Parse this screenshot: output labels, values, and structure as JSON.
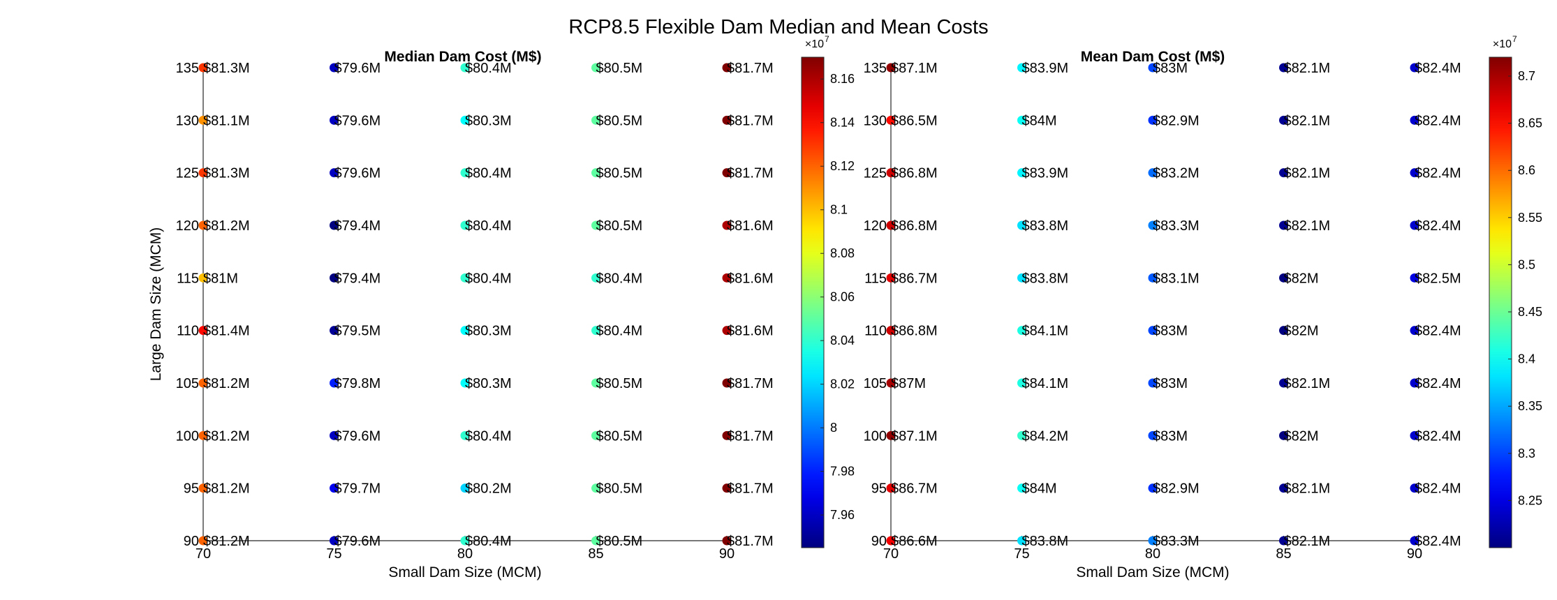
{
  "figure": {
    "title": "RCP8.5 Flexible Dam Median and Mean Costs"
  },
  "chart_data": [
    {
      "type": "scatter",
      "title": "Median Dam Cost (M$)",
      "xlabel": "Small Dam Size (MCM)",
      "ylabel": "Large Dam Size (MCM)",
      "x": [
        70,
        75,
        80,
        85,
        90
      ],
      "y": [
        90,
        95,
        100,
        105,
        110,
        115,
        120,
        125,
        130,
        135
      ],
      "xlim": [
        70,
        90
      ],
      "ylim": [
        90,
        135
      ],
      "x_ticks": [
        "70",
        "75",
        "80",
        "85",
        "90"
      ],
      "y_ticks": [
        "90",
        "95",
        "100",
        "105",
        "110",
        "115",
        "120",
        "125",
        "130",
        "135"
      ],
      "grid": false,
      "values": [
        [
          81.2,
          79.6,
          80.4,
          80.5,
          81.7
        ],
        [
          81.2,
          79.7,
          80.2,
          80.5,
          81.7
        ],
        [
          81.2,
          79.6,
          80.4,
          80.5,
          81.7
        ],
        [
          81.2,
          79.8,
          80.3,
          80.5,
          81.7
        ],
        [
          81.4,
          79.5,
          80.3,
          80.4,
          81.6
        ],
        [
          81.0,
          79.4,
          80.4,
          80.4,
          81.6
        ],
        [
          81.2,
          79.4,
          80.4,
          80.5,
          81.6
        ],
        [
          81.3,
          79.6,
          80.4,
          80.5,
          81.7
        ],
        [
          81.1,
          79.6,
          80.3,
          80.5,
          81.7
        ],
        [
          81.3,
          79.6,
          80.4,
          80.5,
          81.7
        ]
      ],
      "labels": [
        [
          "$81.2M",
          "$79.6M",
          "$80.4M",
          "$80.5M",
          "$81.7M"
        ],
        [
          "$81.2M",
          "$79.7M",
          "$80.2M",
          "$80.5M",
          "$81.7M"
        ],
        [
          "$81.2M",
          "$79.6M",
          "$80.4M",
          "$80.5M",
          "$81.7M"
        ],
        [
          "$81.2M",
          "$79.8M",
          "$80.3M",
          "$80.5M",
          "$81.7M"
        ],
        [
          "$81.4M",
          "$79.5M",
          "$80.3M",
          "$80.4M",
          "$81.6M"
        ],
        [
          "$81M",
          "$79.4M",
          "$80.4M",
          "$80.4M",
          "$81.6M"
        ],
        [
          "$81.2M",
          "$79.4M",
          "$80.4M",
          "$80.5M",
          "$81.6M"
        ],
        [
          "$81.3M",
          "$79.6M",
          "$80.4M",
          "$80.5M",
          "$81.7M"
        ],
        [
          "$81.1M",
          "$79.6M",
          "$80.3M",
          "$80.5M",
          "$81.7M"
        ],
        [
          "$81.3M",
          "$79.6M",
          "$80.4M",
          "$80.5M",
          "$81.7M"
        ]
      ],
      "colorbar": {
        "colormap": "jet",
        "min": 7.945,
        "max": 8.17,
        "ticks": [
          7.96,
          7.98,
          8,
          8.02,
          8.04,
          8.06,
          8.08,
          8.1,
          8.12,
          8.14,
          8.16
        ],
        "tick_labels": [
          "7.96",
          "7.98",
          "8",
          "8.02",
          "8.04",
          "8.06",
          "8.08",
          "8.1",
          "8.12",
          "8.14",
          "8.16"
        ],
        "exponent_label": "×10",
        "exponent_power": "7"
      }
    },
    {
      "type": "scatter",
      "title": "Mean Dam Cost (M$)",
      "xlabel": "Small Dam Size (MCM)",
      "ylabel": "",
      "x": [
        70,
        75,
        80,
        85,
        90
      ],
      "y": [
        90,
        95,
        100,
        105,
        110,
        115,
        120,
        125,
        130,
        135
      ],
      "xlim": [
        70,
        90
      ],
      "ylim": [
        90,
        135
      ],
      "x_ticks": [
        "70",
        "75",
        "80",
        "85",
        "90"
      ],
      "y_ticks": [
        "90",
        "95",
        "100",
        "105",
        "110",
        "115",
        "120",
        "125",
        "130",
        "135"
      ],
      "grid": false,
      "values": [
        [
          86.6,
          83.8,
          83.3,
          82.1,
          82.4
        ],
        [
          86.7,
          84.0,
          82.9,
          82.1,
          82.4
        ],
        [
          87.1,
          84.2,
          83.0,
          82.0,
          82.4
        ],
        [
          87.0,
          84.1,
          83.0,
          82.1,
          82.4
        ],
        [
          86.8,
          84.1,
          83.0,
          82.0,
          82.4
        ],
        [
          86.7,
          83.8,
          83.1,
          82.0,
          82.5
        ],
        [
          86.8,
          83.8,
          83.3,
          82.1,
          82.4
        ],
        [
          86.8,
          83.9,
          83.2,
          82.1,
          82.4
        ],
        [
          86.5,
          84.0,
          82.9,
          82.1,
          82.4
        ],
        [
          87.1,
          83.9,
          83.0,
          82.1,
          82.4
        ]
      ],
      "labels": [
        [
          "$86.6M",
          "$83.8M",
          "$83.3M",
          "$82.1M",
          "$82.4M"
        ],
        [
          "$86.7M",
          "$84M",
          "$82.9M",
          "$82.1M",
          "$82.4M"
        ],
        [
          "$87.1M",
          "$84.2M",
          "$83M",
          "$82M",
          "$82.4M"
        ],
        [
          "$87M",
          "$84.1M",
          "$83M",
          "$82.1M",
          "$82.4M"
        ],
        [
          "$86.8M",
          "$84.1M",
          "$83M",
          "$82M",
          "$82.4M"
        ],
        [
          "$86.7M",
          "$83.8M",
          "$83.1M",
          "$82M",
          "$82.5M"
        ],
        [
          "$86.8M",
          "$83.8M",
          "$83.3M",
          "$82.1M",
          "$82.4M"
        ],
        [
          "$86.8M",
          "$83.9M",
          "$83.2M",
          "$82.1M",
          "$82.4M"
        ],
        [
          "$86.5M",
          "$84M",
          "$82.9M",
          "$82.1M",
          "$82.4M"
        ],
        [
          "$87.1M",
          "$83.9M",
          "$83M",
          "$82.1M",
          "$82.4M"
        ]
      ],
      "colorbar": {
        "colormap": "jet",
        "min": 8.2,
        "max": 8.72,
        "ticks": [
          8.25,
          8.3,
          8.35,
          8.4,
          8.45,
          8.5,
          8.55,
          8.6,
          8.65,
          8.7
        ],
        "tick_labels": [
          "8.25",
          "8.3",
          "8.35",
          "8.4",
          "8.45",
          "8.5",
          "8.55",
          "8.6",
          "8.65",
          "8.7"
        ],
        "exponent_label": "×10",
        "exponent_power": "7"
      }
    }
  ]
}
